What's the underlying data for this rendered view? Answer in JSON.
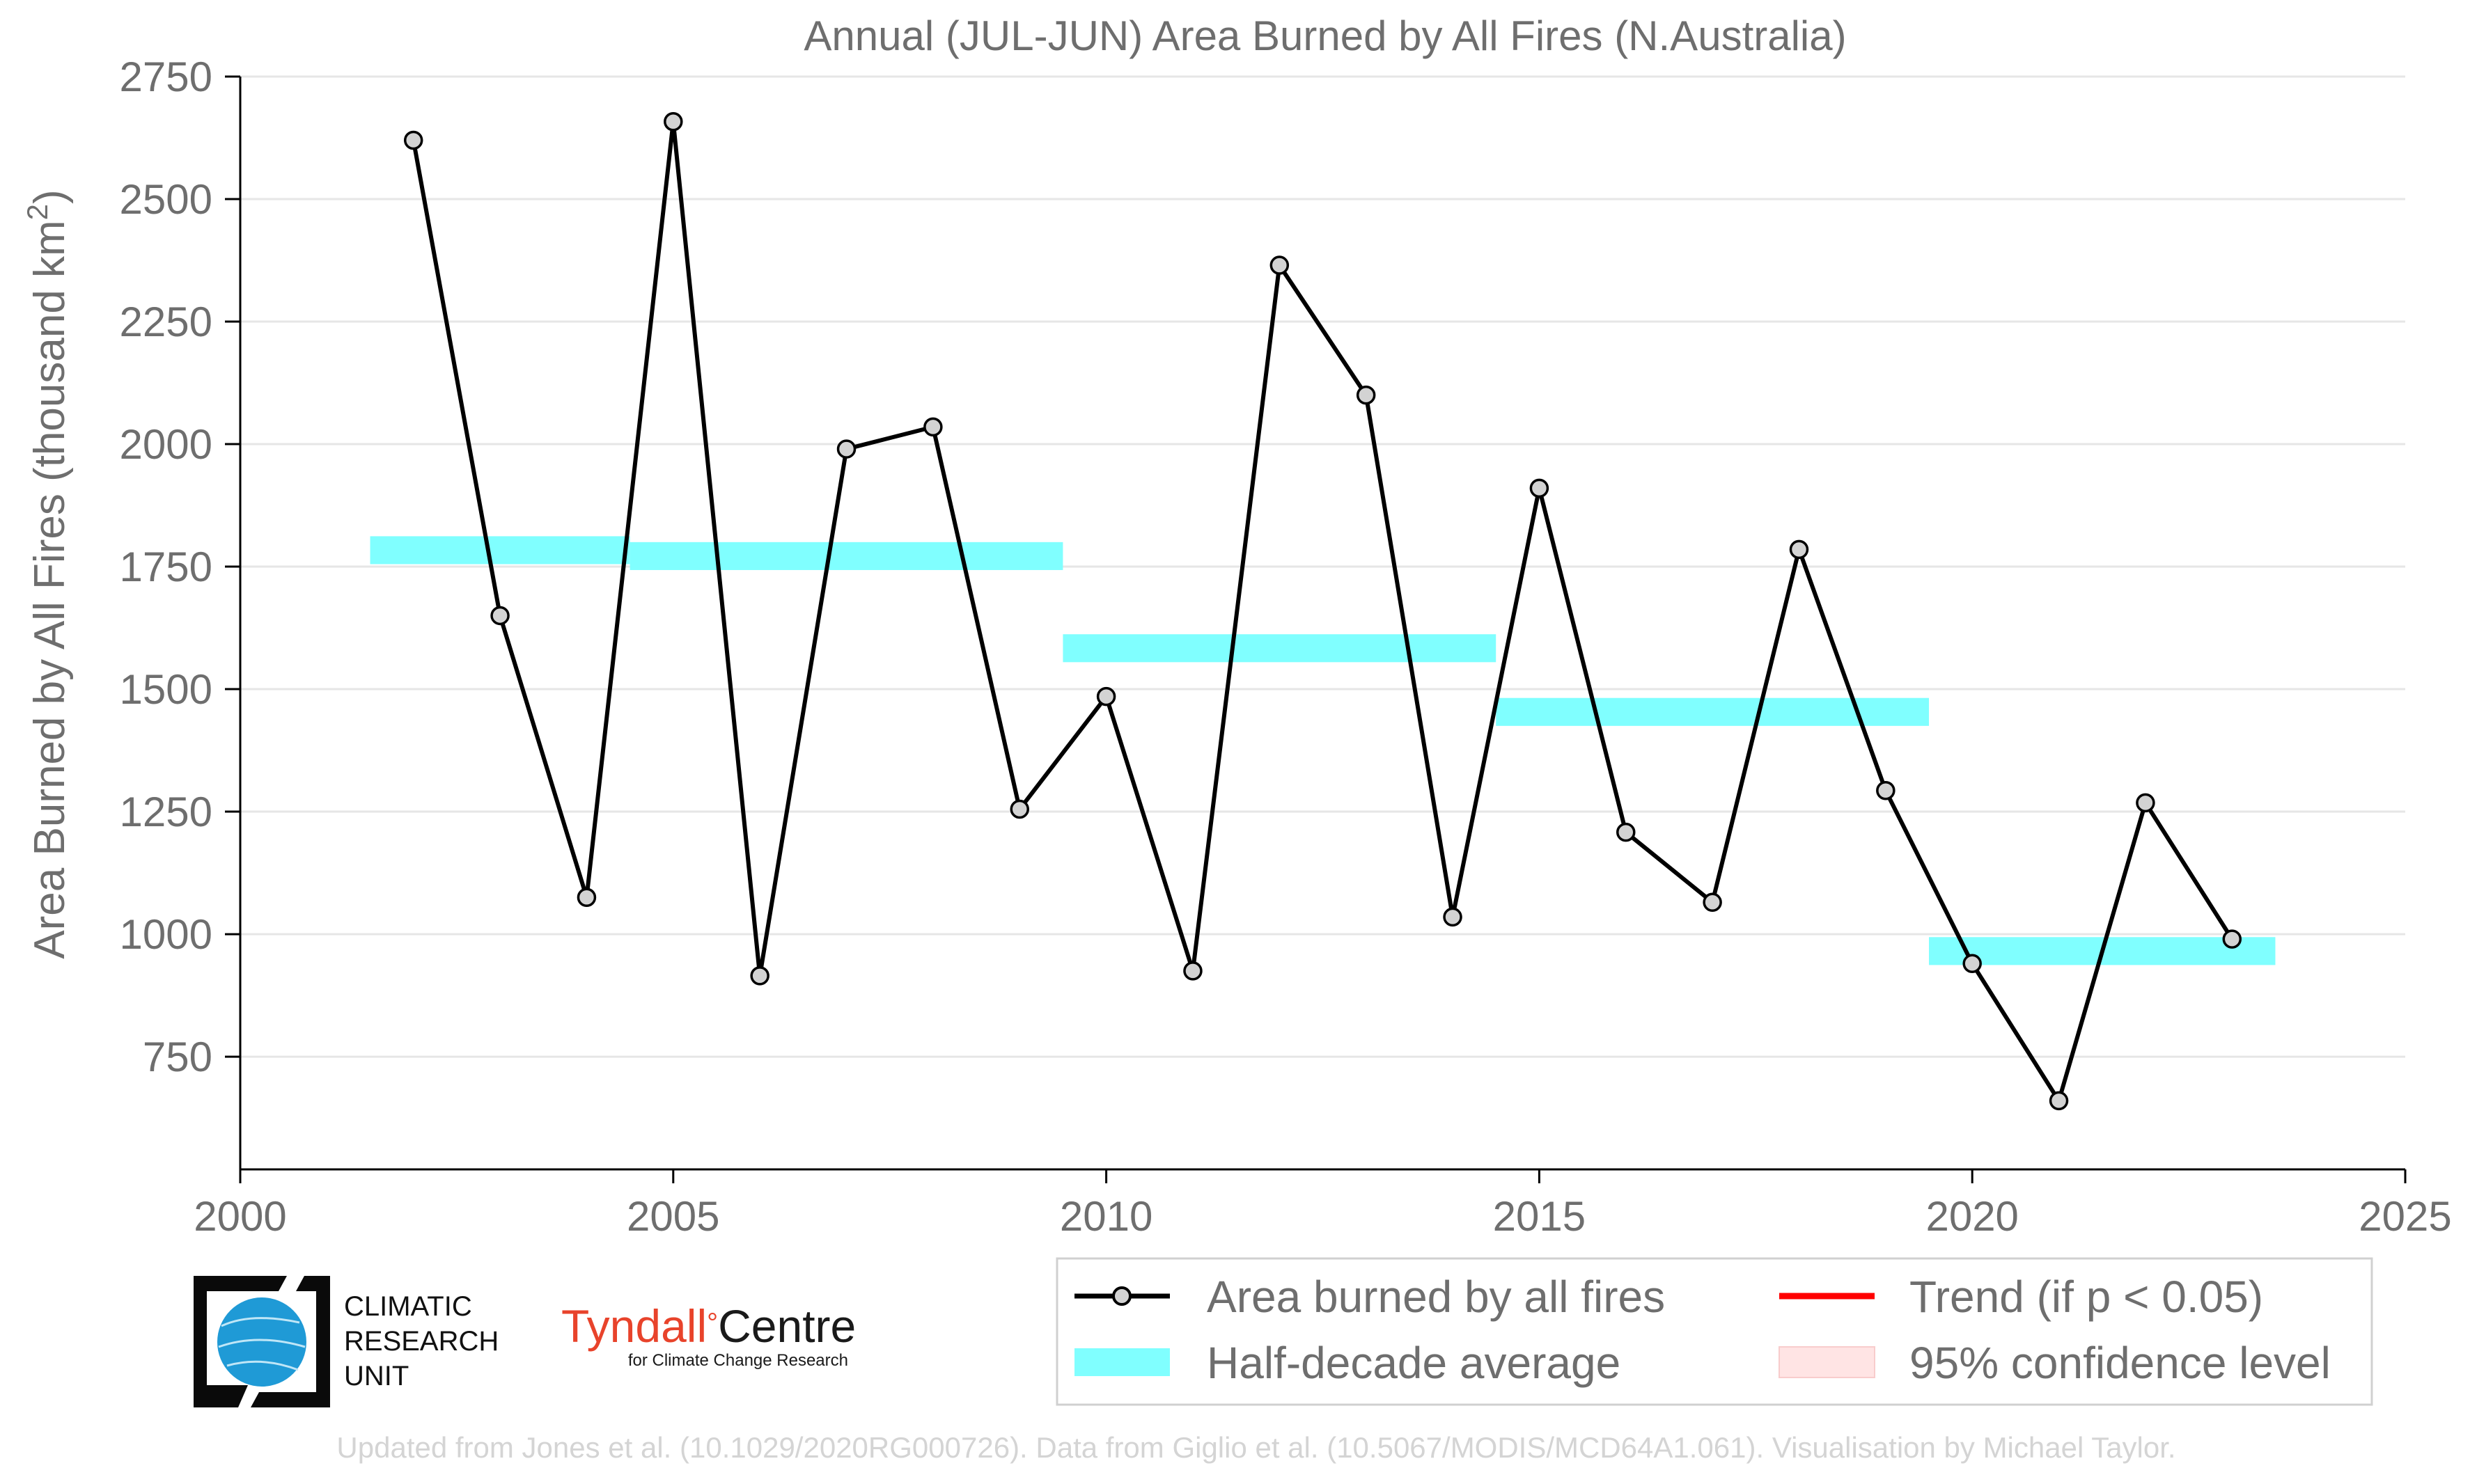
{
  "chart_data": {
    "type": "line",
    "title": "Annual (JUL-JUN) Area Burned by All Fires (N.Australia)",
    "ylabel_main": "Area Burned by All Fires (thousand km",
    "ylabel_sup": "2",
    "ylabel_close": ")",
    "xlim": [
      2000,
      2025
    ],
    "ylim": [
      520,
      2750
    ],
    "x_ticks": [
      2000,
      2005,
      2010,
      2015,
      2020,
      2025
    ],
    "y_ticks": [
      750,
      1000,
      1250,
      1500,
      1750,
      2000,
      2250,
      2500,
      2750
    ],
    "grid": "horizontal",
    "legend_placement": "bottom-right",
    "series": [
      {
        "name": "Area burned by all fires",
        "color": "#000000",
        "marker_fill": "#d3d3d3",
        "x": [
          2002,
          2003,
          2004,
          2005,
          2006,
          2007,
          2008,
          2009,
          2010,
          2011,
          2012,
          2013,
          2014,
          2015,
          2016,
          2017,
          2018,
          2019,
          2020,
          2021,
          2022,
          2023
        ],
        "y": [
          2620,
          1650,
          1075,
          2658,
          915,
          1990,
          2035,
          1255,
          1485,
          925,
          2365,
          2100,
          1035,
          1910,
          1208,
          1065,
          1785,
          1293,
          940,
          660,
          1268,
          990
        ]
      }
    ],
    "half_decade_average": {
      "name": "Half-decade average",
      "color": "#80ffff",
      "segments": [
        {
          "x_start": 2001.5,
          "x_end": 2004.5,
          "y_low": 1755,
          "y_high": 1812
        },
        {
          "x_start": 2004.5,
          "x_end": 2009.5,
          "y_low": 1743,
          "y_high": 1800
        },
        {
          "x_start": 2009.5,
          "x_end": 2014.5,
          "y_low": 1555,
          "y_high": 1612
        },
        {
          "x_start": 2014.5,
          "x_end": 2019.5,
          "y_low": 1425,
          "y_high": 1482
        },
        {
          "x_start": 2019.5,
          "x_end": 2023.5,
          "y_low": 937,
          "y_high": 994
        }
      ]
    },
    "legend": [
      {
        "label": "Area burned by all fires",
        "kind": "line-marker",
        "color": "#000000"
      },
      {
        "label": "Trend (if p < 0.05)",
        "kind": "line",
        "color": "#ff0000"
      },
      {
        "label": "Half-decade average",
        "kind": "patch",
        "color": "#80ffff"
      },
      {
        "label": "95% confidence level",
        "kind": "patch",
        "color": "#ffe4e4"
      }
    ],
    "footer": "Updated from Jones et al. (10.1029/2020RG000726). Data from Giglio et al. (10.5067/MODIS/MCD64A1.061). Visualisation by Michael Taylor."
  },
  "logos": {
    "cru": [
      "CLIMATIC",
      "RESEARCH",
      "UNIT"
    ],
    "tyndall_main": "Tyndall",
    "tyndall_degree": "°",
    "tyndall_centre": "Centre",
    "tyndall_sub": "for Climate Change Research"
  }
}
